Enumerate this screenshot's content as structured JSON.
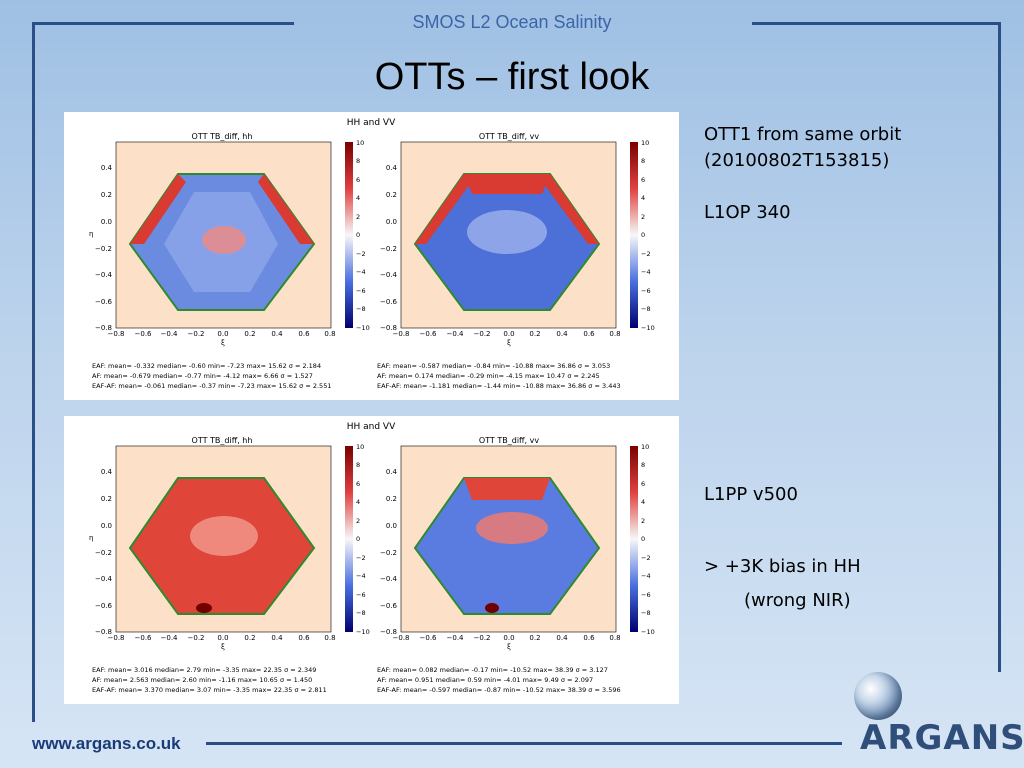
{
  "header": {
    "org_line": "SMOS L2 Ocean Salinity",
    "title": "OTTs – first look"
  },
  "panels": [
    {
      "super_title": "HH and VV",
      "left_title": "OTT TB_diff, hh",
      "right_title": "OTT TB_diff, vv",
      "ylabel": "η",
      "xlabel": "ξ",
      "yticks": [
        "0.4",
        "0.2",
        "0.0",
        "−0.2",
        "−0.4",
        "−0.6",
        "−0.8"
      ],
      "xticks": [
        "−0.8",
        "−0.6",
        "−0.4",
        "−0.2",
        "0.0",
        "0.2",
        "0.4",
        "0.6",
        "0.8"
      ],
      "cbar_ticks": [
        "10",
        "8",
        "6",
        "4",
        "2",
        "0",
        "−2",
        "−4",
        "−6",
        "−8",
        "−10"
      ],
      "stats_left": [
        "EAF: mean= -0.332  median= -0.60  min= -7.23  max= 15.62  σ = 2.184",
        "AF: mean= -0.679  median= -0.77  min= -4.12  max= 6.66  σ = 1.527",
        "EAF-AF: mean= -0.061  median= -0.37  min= -7.23  max= 15.62  σ = 2.551"
      ],
      "stats_right": [
        "EAF: mean= -0.587  median= -0.84  min= -10.88  max= 36.86  σ = 3.053",
        "AF: mean= 0.174  median= -0.29  min= -4.15  max= 10.47  σ = 2.245",
        "EAF-AF: mean= -1.181  median= -1.44  min= -10.88  max= 36.86  σ = 3.443"
      ]
    },
    {
      "super_title": "HH and VV",
      "left_title": "OTT TB_diff, hh",
      "right_title": "OTT TB_diff, vv",
      "ylabel": "η",
      "xlabel": "ξ",
      "yticks": [
        "0.4",
        "0.2",
        "0.0",
        "−0.2",
        "−0.4",
        "−0.6",
        "−0.8"
      ],
      "xticks": [
        "−0.8",
        "−0.6",
        "−0.4",
        "−0.2",
        "0.0",
        "0.2",
        "0.4",
        "0.6",
        "0.8"
      ],
      "cbar_ticks": [
        "10",
        "8",
        "6",
        "4",
        "2",
        "0",
        "−2",
        "−4",
        "−6",
        "−8",
        "−10"
      ],
      "stats_left": [
        "EAF: mean= 3.016  median= 2.79  min= -3.35  max= 22.35  σ = 2.349",
        "AF: mean= 2.563  median= 2.60  min= -1.16  max= 10.65  σ = 1.450",
        "EAF-AF: mean= 3.370  median= 3.07  min= -3.35  max= 22.35  σ = 2.811"
      ],
      "stats_right": [
        "EAF: mean= 0.082  median= -0.17  min= -10.52  max= 38.39  σ = 3.127",
        "AF: mean= 0.951  median= 0.59  min= -4.01  max= 9.49  σ = 2.097",
        "EAF-AF: mean= -0.597  median= -0.87  min= -10.52  max= 38.39  σ = 3.596"
      ]
    }
  ],
  "notes_top": [
    "OTT1 from same orbit",
    "(20100802T153815)",
    "",
    "L1OP 340"
  ],
  "notes_bottom": [
    "L1PP v500",
    "",
    "> +3K bias in HH",
    "(wrong NIR)"
  ],
  "footer": {
    "url": "www.argans.co.uk",
    "logo": "ARGANS"
  },
  "colors": {
    "frame": "#2a4f86",
    "field_bg": "#fde0c8",
    "warm": "#e0453a",
    "cool": "#3a5fd0"
  }
}
